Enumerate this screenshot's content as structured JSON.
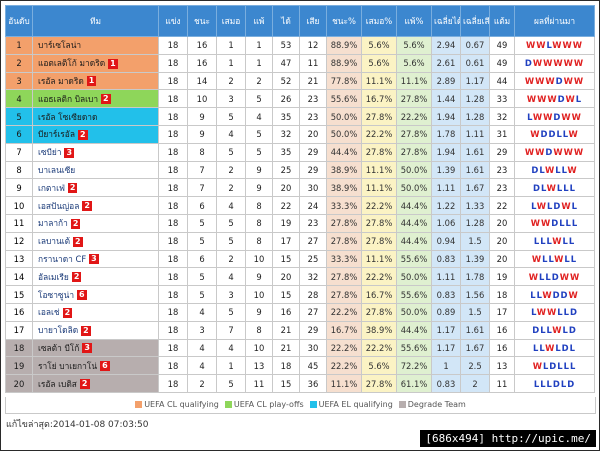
{
  "headers": {
    "rank": "อันดับ",
    "team": "ทีม",
    "played": "แข่ง",
    "won": "ชนะ",
    "drawn": "เสมอ",
    "lost": "แพ้",
    "gf": "ได้",
    "ga": "เสีย",
    "win_pct": "ชนะ%",
    "draw_pct": "เสมอ%",
    "loss_pct": "แพ้%",
    "avg_gf": "เฉลี่ยได้",
    "avg_ga": "เฉลี่ยเสีย",
    "points": "แต้ม",
    "form": "ผลที่ผ่านมา"
  },
  "zone_colors": {
    "cl": "#f3a06b",
    "po": "#8ed65a",
    "el": "#22c0ea",
    "dg": "#b7aeae"
  },
  "rows": [
    {
      "rank": "1",
      "team": "บาร์เซโลน่า",
      "badge": "",
      "zone": "cl",
      "p": "18",
      "w": "16",
      "d": "1",
      "l": "1",
      "gf": "53",
      "ga": "12",
      "wp": "88.9%",
      "dp": "5.6%",
      "lp": "5.6%",
      "agf": "2.94",
      "aga": "0.67",
      "pts": "49",
      "form": "WWLWWW"
    },
    {
      "rank": "2",
      "team": "แอตเลติโก้ มาดริด",
      "badge": "1",
      "zone": "cl",
      "p": "18",
      "w": "16",
      "d": "1",
      "l": "1",
      "gf": "47",
      "ga": "11",
      "wp": "88.9%",
      "dp": "5.6%",
      "lp": "5.6%",
      "agf": "2.61",
      "aga": "0.61",
      "pts": "49",
      "form": "DWWWWW"
    },
    {
      "rank": "3",
      "team": "เรอัล มาดริด",
      "badge": "1",
      "zone": "cl",
      "p": "18",
      "w": "14",
      "d": "2",
      "l": "2",
      "gf": "52",
      "ga": "21",
      "wp": "77.8%",
      "dp": "11.1%",
      "lp": "11.1%",
      "agf": "2.89",
      "aga": "1.17",
      "pts": "44",
      "form": "WWWDWW"
    },
    {
      "rank": "4",
      "team": "แอธเลติก บิลเบา",
      "badge": "2",
      "zone": "po",
      "p": "18",
      "w": "10",
      "d": "3",
      "l": "5",
      "gf": "26",
      "ga": "23",
      "wp": "55.6%",
      "dp": "16.7%",
      "lp": "27.8%",
      "agf": "1.44",
      "aga": "1.28",
      "pts": "33",
      "form": "WWWDWL"
    },
    {
      "rank": "5",
      "team": "เรอัล โซเซียดาด",
      "badge": "",
      "zone": "el",
      "p": "18",
      "w": "9",
      "d": "5",
      "l": "4",
      "gf": "35",
      "ga": "23",
      "wp": "50.0%",
      "dp": "27.8%",
      "lp": "22.2%",
      "agf": "1.94",
      "aga": "1.28",
      "pts": "32",
      "form": "LWWDWW"
    },
    {
      "rank": "6",
      "team": "บียาร์เรอัล",
      "badge": "2",
      "zone": "el",
      "p": "18",
      "w": "9",
      "d": "4",
      "l": "5",
      "gf": "32",
      "ga": "20",
      "wp": "50.0%",
      "dp": "22.2%",
      "lp": "27.8%",
      "agf": "1.78",
      "aga": "1.11",
      "pts": "31",
      "form": "WDDLLW"
    },
    {
      "rank": "7",
      "team": "เซบีย่า",
      "badge": "3",
      "zone": "",
      "p": "18",
      "w": "8",
      "d": "5",
      "l": "5",
      "gf": "35",
      "ga": "29",
      "wp": "44.4%",
      "dp": "27.8%",
      "lp": "27.8%",
      "agf": "1.94",
      "aga": "1.61",
      "pts": "29",
      "form": "WWDWWW"
    },
    {
      "rank": "8",
      "team": "บาเลนเซีย",
      "badge": "",
      "zone": "",
      "p": "18",
      "w": "7",
      "d": "2",
      "l": "9",
      "gf": "25",
      "ga": "29",
      "wp": "38.9%",
      "dp": "11.1%",
      "lp": "50.0%",
      "agf": "1.39",
      "aga": "1.61",
      "pts": "23",
      "form": "DLWLLW"
    },
    {
      "rank": "9",
      "team": "เกตาเฟ่",
      "badge": "2",
      "zone": "",
      "p": "18",
      "w": "7",
      "d": "2",
      "l": "9",
      "gf": "20",
      "ga": "30",
      "wp": "38.9%",
      "dp": "11.1%",
      "lp": "50.0%",
      "agf": "1.11",
      "aga": "1.67",
      "pts": "23",
      "form": "DLWLLL"
    },
    {
      "rank": "10",
      "team": "เอสปันญ่อล",
      "badge": "2",
      "zone": "",
      "p": "18",
      "w": "6",
      "d": "4",
      "l": "8",
      "gf": "22",
      "ga": "24",
      "wp": "33.3%",
      "dp": "22.2%",
      "lp": "44.4%",
      "agf": "1.22",
      "aga": "1.33",
      "pts": "22",
      "form": "LWLDWL"
    },
    {
      "rank": "11",
      "team": "มาลาก้า",
      "badge": "2",
      "zone": "",
      "p": "18",
      "w": "5",
      "d": "5",
      "l": "8",
      "gf": "19",
      "ga": "23",
      "wp": "27.8%",
      "dp": "27.8%",
      "lp": "44.4%",
      "agf": "1.06",
      "aga": "1.28",
      "pts": "20",
      "form": "WWDLLL"
    },
    {
      "rank": "12",
      "team": "เลบานเต้",
      "badge": "2",
      "zone": "",
      "p": "18",
      "w": "5",
      "d": "5",
      "l": "8",
      "gf": "17",
      "ga": "27",
      "wp": "27.8%",
      "dp": "27.8%",
      "lp": "44.4%",
      "agf": "0.94",
      "aga": "1.5",
      "pts": "20",
      "form": "LLLWLL"
    },
    {
      "rank": "13",
      "team": "กรานาดา CF",
      "badge": "3",
      "zone": "",
      "p": "18",
      "w": "6",
      "d": "2",
      "l": "10",
      "gf": "15",
      "ga": "25",
      "wp": "33.3%",
      "dp": "11.1%",
      "lp": "55.6%",
      "agf": "0.83",
      "aga": "1.39",
      "pts": "20",
      "form": "WLLWLL"
    },
    {
      "rank": "14",
      "team": "อัลเมเรีย",
      "badge": "2",
      "zone": "",
      "p": "18",
      "w": "5",
      "d": "4",
      "l": "9",
      "gf": "20",
      "ga": "32",
      "wp": "27.8%",
      "dp": "22.2%",
      "lp": "50.0%",
      "agf": "1.11",
      "aga": "1.78",
      "pts": "19",
      "form": "WLLDWW"
    },
    {
      "rank": "15",
      "team": "โอซาซูน่า",
      "badge": "6",
      "zone": "",
      "p": "18",
      "w": "5",
      "d": "3",
      "l": "10",
      "gf": "15",
      "ga": "28",
      "wp": "27.8%",
      "dp": "16.7%",
      "lp": "55.6%",
      "agf": "0.83",
      "aga": "1.56",
      "pts": "18",
      "form": "LLWDDW"
    },
    {
      "rank": "16",
      "team": "เอลเช่",
      "badge": "2",
      "zone": "",
      "p": "18",
      "w": "4",
      "d": "5",
      "l": "9",
      "gf": "16",
      "ga": "27",
      "wp": "22.2%",
      "dp": "27.8%",
      "lp": "50.0%",
      "agf": "0.89",
      "aga": "1.5",
      "pts": "17",
      "form": "LWWLLD"
    },
    {
      "rank": "17",
      "team": "บายาโดลิด",
      "badge": "2",
      "zone": "",
      "p": "18",
      "w": "3",
      "d": "7",
      "l": "8",
      "gf": "21",
      "ga": "29",
      "wp": "16.7%",
      "dp": "38.9%",
      "lp": "44.4%",
      "agf": "1.17",
      "aga": "1.61",
      "pts": "16",
      "form": "DLLWLD"
    },
    {
      "rank": "18",
      "team": "เซลต้า บีโก้",
      "badge": "3",
      "zone": "dg",
      "p": "18",
      "w": "4",
      "d": "4",
      "l": "10",
      "gf": "21",
      "ga": "30",
      "wp": "22.2%",
      "dp": "22.2%",
      "lp": "55.6%",
      "agf": "1.17",
      "aga": "1.67",
      "pts": "16",
      "form": "LLWLDL"
    },
    {
      "rank": "19",
      "team": "ราโย่ บาเยกาโน่",
      "badge": "6",
      "zone": "dg",
      "p": "18",
      "w": "4",
      "d": "1",
      "l": "13",
      "gf": "18",
      "ga": "45",
      "wp": "22.2%",
      "dp": "5.6%",
      "lp": "72.2%",
      "agf": "1",
      "aga": "2.5",
      "pts": "13",
      "form": "WLDLLL"
    },
    {
      "rank": "20",
      "team": "เรอัล เบติส",
      "badge": "2",
      "zone": "dg",
      "p": "18",
      "w": "2",
      "d": "5",
      "l": "11",
      "gf": "15",
      "ga": "36",
      "wp": "11.1%",
      "dp": "27.8%",
      "lp": "61.1%",
      "agf": "0.83",
      "aga": "2",
      "pts": "11",
      "form": "LLLDLD"
    }
  ],
  "legend": [
    {
      "label": "UEFA CL qualifying",
      "color": "#f3a06b"
    },
    {
      "label": "UEFA CL play-offs",
      "color": "#8ed65a"
    },
    {
      "label": "UEFA EL qualifying",
      "color": "#22c0ea"
    },
    {
      "label": "Degrade Team",
      "color": "#b7aeae"
    }
  ],
  "updated": "แก้ไขล่าสุด:2014-01-08 07:03:50",
  "credit": "[686x494] http://upic.me/"
}
